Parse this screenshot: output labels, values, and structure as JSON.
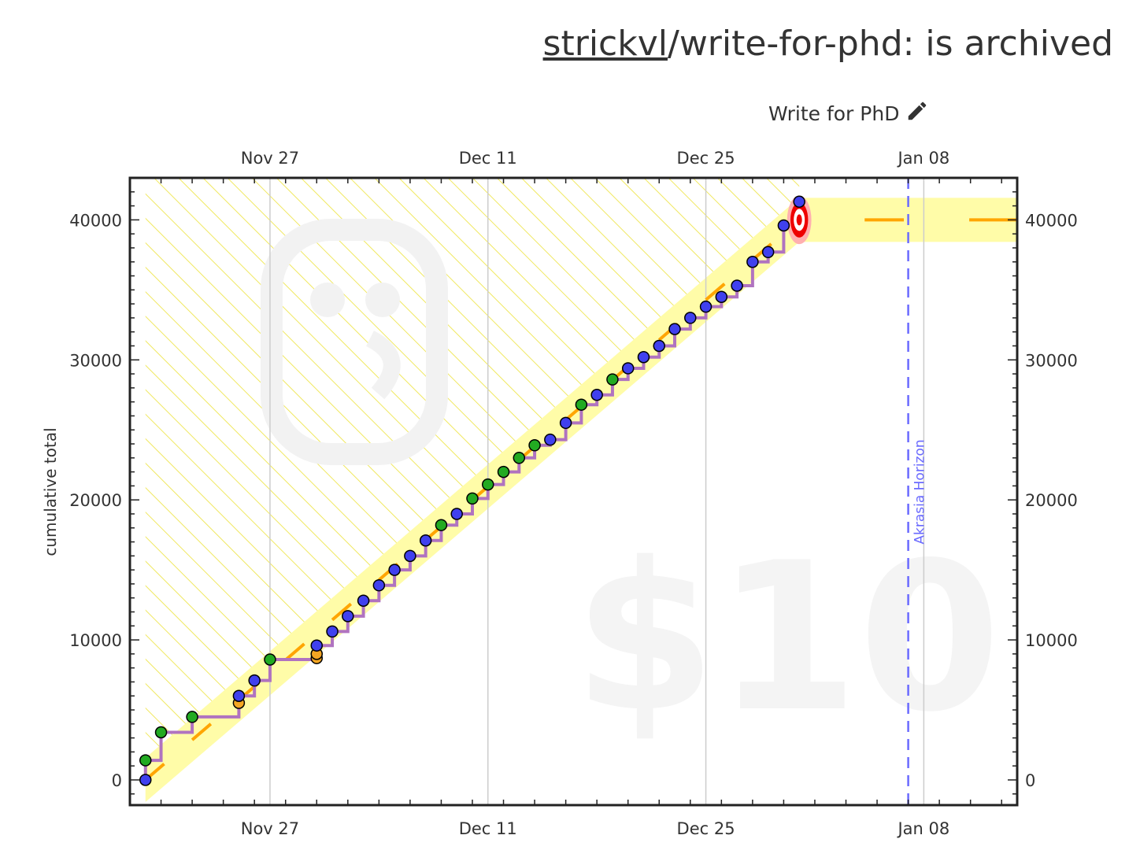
{
  "header": {
    "user": "strickvl",
    "separator": "/",
    "goal_slug": "write-for-phd",
    "status_text": ": is archived"
  },
  "goal": {
    "title": "Write for PhD",
    "edit_icon": "pencil-icon"
  },
  "chart_data": {
    "type": "scatter",
    "ylabel": "cumulative total",
    "x_ticks": [
      "Nov 27",
      "Dec 11",
      "Dec 25",
      "Jan 08"
    ],
    "x_tick_dates": [
      "2021-11-27",
      "2021-12-11",
      "2021-12-25",
      "2022-01-08"
    ],
    "ylim": [
      -1800,
      43000
    ],
    "xlim": [
      "2021-11-18",
      "2022-01-14"
    ],
    "y_ticks": [
      0,
      10000,
      20000,
      30000,
      40000
    ],
    "watermark_amount": "$10",
    "horizon_label": "Akrasia Horizon",
    "horizon_date": "2022-01-07",
    "colors": {
      "bright_red_line": "#ffa500",
      "steps": "#b073c0",
      "good_day": "#22aa22",
      "normal_day": "#4040ee",
      "orange_day": "#f5a623",
      "road_band": "#fffca8",
      "horizon": "#6a6aff",
      "target": "#ee0000"
    },
    "series": [
      {
        "name": "datapoints",
        "points": [
          {
            "x": "2021-11-19",
            "y": 0,
            "c": "blue"
          },
          {
            "x": "2021-11-19",
            "y": 1400,
            "c": "green"
          },
          {
            "x": "2021-11-20",
            "y": 3400,
            "c": "green"
          },
          {
            "x": "2021-11-22",
            "y": 4500,
            "c": "green"
          },
          {
            "x": "2021-11-25",
            "y": 5500,
            "c": "orange"
          },
          {
            "x": "2021-11-25",
            "y": 6000,
            "c": "blue"
          },
          {
            "x": "2021-11-26",
            "y": 7100,
            "c": "blue"
          },
          {
            "x": "2021-11-27",
            "y": 8600,
            "c": "green"
          },
          {
            "x": "2021-11-30",
            "y": 8700,
            "c": "orange"
          },
          {
            "x": "2021-11-30",
            "y": 9000,
            "c": "orange"
          },
          {
            "x": "2021-11-30",
            "y": 9600,
            "c": "blue"
          },
          {
            "x": "2021-12-01",
            "y": 10600,
            "c": "blue"
          },
          {
            "x": "2021-12-02",
            "y": 11700,
            "c": "blue"
          },
          {
            "x": "2021-12-03",
            "y": 12800,
            "c": "blue"
          },
          {
            "x": "2021-12-04",
            "y": 13900,
            "c": "blue"
          },
          {
            "x": "2021-12-05",
            "y": 15000,
            "c": "blue"
          },
          {
            "x": "2021-12-06",
            "y": 16000,
            "c": "blue"
          },
          {
            "x": "2021-12-07",
            "y": 17100,
            "c": "blue"
          },
          {
            "x": "2021-12-08",
            "y": 18200,
            "c": "green"
          },
          {
            "x": "2021-12-09",
            "y": 19000,
            "c": "blue"
          },
          {
            "x": "2021-12-10",
            "y": 20100,
            "c": "green"
          },
          {
            "x": "2021-12-11",
            "y": 21100,
            "c": "green"
          },
          {
            "x": "2021-12-12",
            "y": 22000,
            "c": "green"
          },
          {
            "x": "2021-12-13",
            "y": 23000,
            "c": "green"
          },
          {
            "x": "2021-12-14",
            "y": 23900,
            "c": "green"
          },
          {
            "x": "2021-12-15",
            "y": 24300,
            "c": "blue"
          },
          {
            "x": "2021-12-16",
            "y": 25500,
            "c": "blue"
          },
          {
            "x": "2021-12-17",
            "y": 26800,
            "c": "green"
          },
          {
            "x": "2021-12-18",
            "y": 27500,
            "c": "blue"
          },
          {
            "x": "2021-12-19",
            "y": 28600,
            "c": "green"
          },
          {
            "x": "2021-12-20",
            "y": 29400,
            "c": "blue"
          },
          {
            "x": "2021-12-21",
            "y": 30200,
            "c": "blue"
          },
          {
            "x": "2021-12-22",
            "y": 31000,
            "c": "blue"
          },
          {
            "x": "2021-12-23",
            "y": 32200,
            "c": "blue"
          },
          {
            "x": "2021-12-24",
            "y": 33000,
            "c": "blue"
          },
          {
            "x": "2021-12-25",
            "y": 33800,
            "c": "blue"
          },
          {
            "x": "2021-12-26",
            "y": 34500,
            "c": "blue"
          },
          {
            "x": "2021-12-27",
            "y": 35300,
            "c": "blue"
          },
          {
            "x": "2021-12-28",
            "y": 37000,
            "c": "blue"
          },
          {
            "x": "2021-12-29",
            "y": 37700,
            "c": "blue"
          },
          {
            "x": "2021-12-30",
            "y": 39600,
            "c": "blue"
          },
          {
            "x": "2021-12-31",
            "y": 41300,
            "c": "blue"
          }
        ]
      }
    ],
    "road": {
      "start": {
        "x": "2021-11-19",
        "y": 0
      },
      "end": {
        "x": "2021-12-31",
        "y": 40000
      },
      "flat_until": "2022-01-14"
    },
    "target": {
      "x": "2021-12-31",
      "y": 40000
    },
    "grid": true
  }
}
